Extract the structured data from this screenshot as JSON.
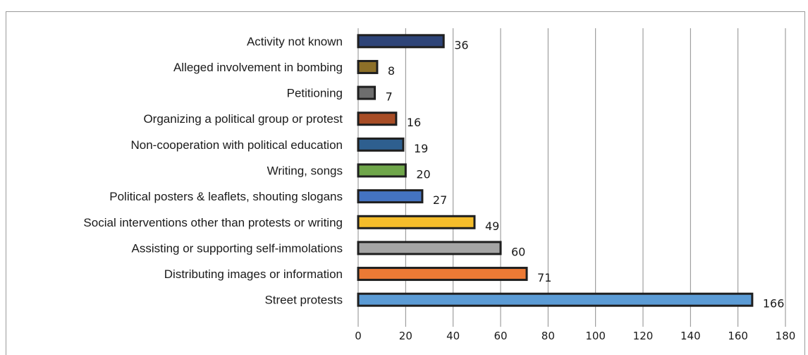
{
  "chart_data": {
    "type": "bar",
    "orientation": "horizontal",
    "categories": [
      "Activity not known",
      "Alleged involvement in bombing",
      "Petitioning",
      "Organizing a political group or protest",
      "Non-cooperation with political education",
      "Writing, songs",
      "Political posters & leaflets, shouting slogans",
      "Social interventions other than protests or writing",
      "Assisting or supporting self-immolations",
      "Distributing images or information",
      "Street protests"
    ],
    "values": [
      36,
      8,
      7,
      16,
      19,
      20,
      27,
      49,
      60,
      71,
      166
    ],
    "colors": [
      "#2e4478",
      "#8c6f28",
      "#6e6e6e",
      "#a84d26",
      "#2e5f8f",
      "#6fa64a",
      "#4473c1",
      "#f5bd2b",
      "#a5a5a5",
      "#ec7a35",
      "#5b9bd5"
    ],
    "xlim": [
      0,
      180
    ],
    "xticks": [
      0,
      20,
      40,
      60,
      80,
      100,
      120,
      140,
      160,
      180
    ],
    "grid": "vertical",
    "title": "",
    "xlabel": "",
    "ylabel": ""
  }
}
